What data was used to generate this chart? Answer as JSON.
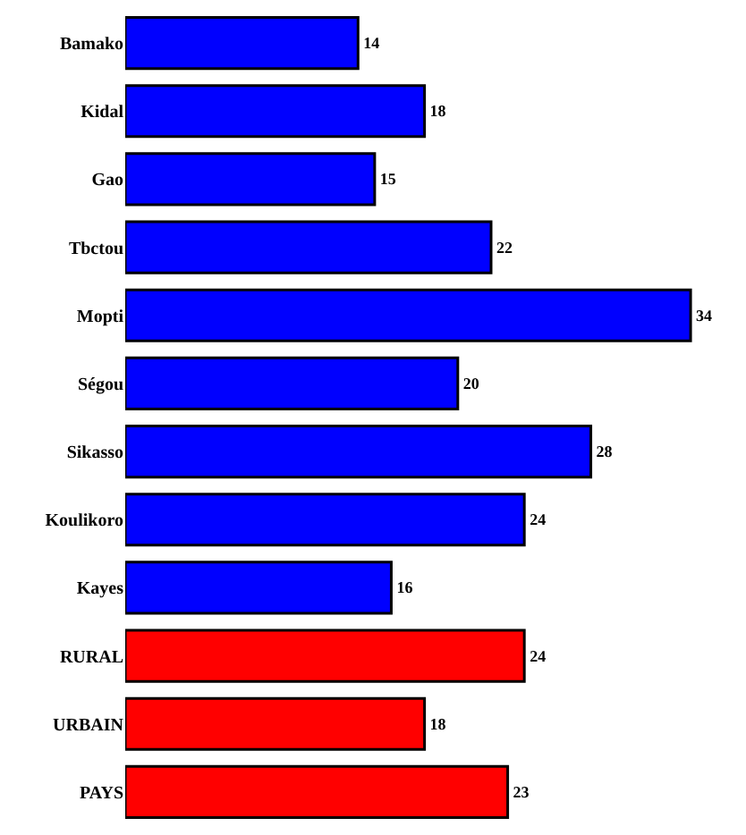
{
  "chart_data": {
    "type": "bar",
    "orientation": "horizontal",
    "categories": [
      "Bamako",
      "Kidal",
      "Gao",
      "Tbctou",
      "Mopti",
      "Ségou",
      "Sikasso",
      "Koulikoro",
      "Kayes",
      "RURAL",
      "URBAIN",
      "PAYS"
    ],
    "values": [
      14,
      18,
      15,
      22,
      34,
      20,
      28,
      24,
      16,
      24,
      18,
      23
    ],
    "colors": [
      "#0000ff",
      "#0000ff",
      "#0000ff",
      "#0000ff",
      "#0000ff",
      "#0000ff",
      "#0000ff",
      "#0000ff",
      "#0000ff",
      "#ff0000",
      "#ff0000",
      "#ff0000"
    ],
    "data_labels": true
  }
}
